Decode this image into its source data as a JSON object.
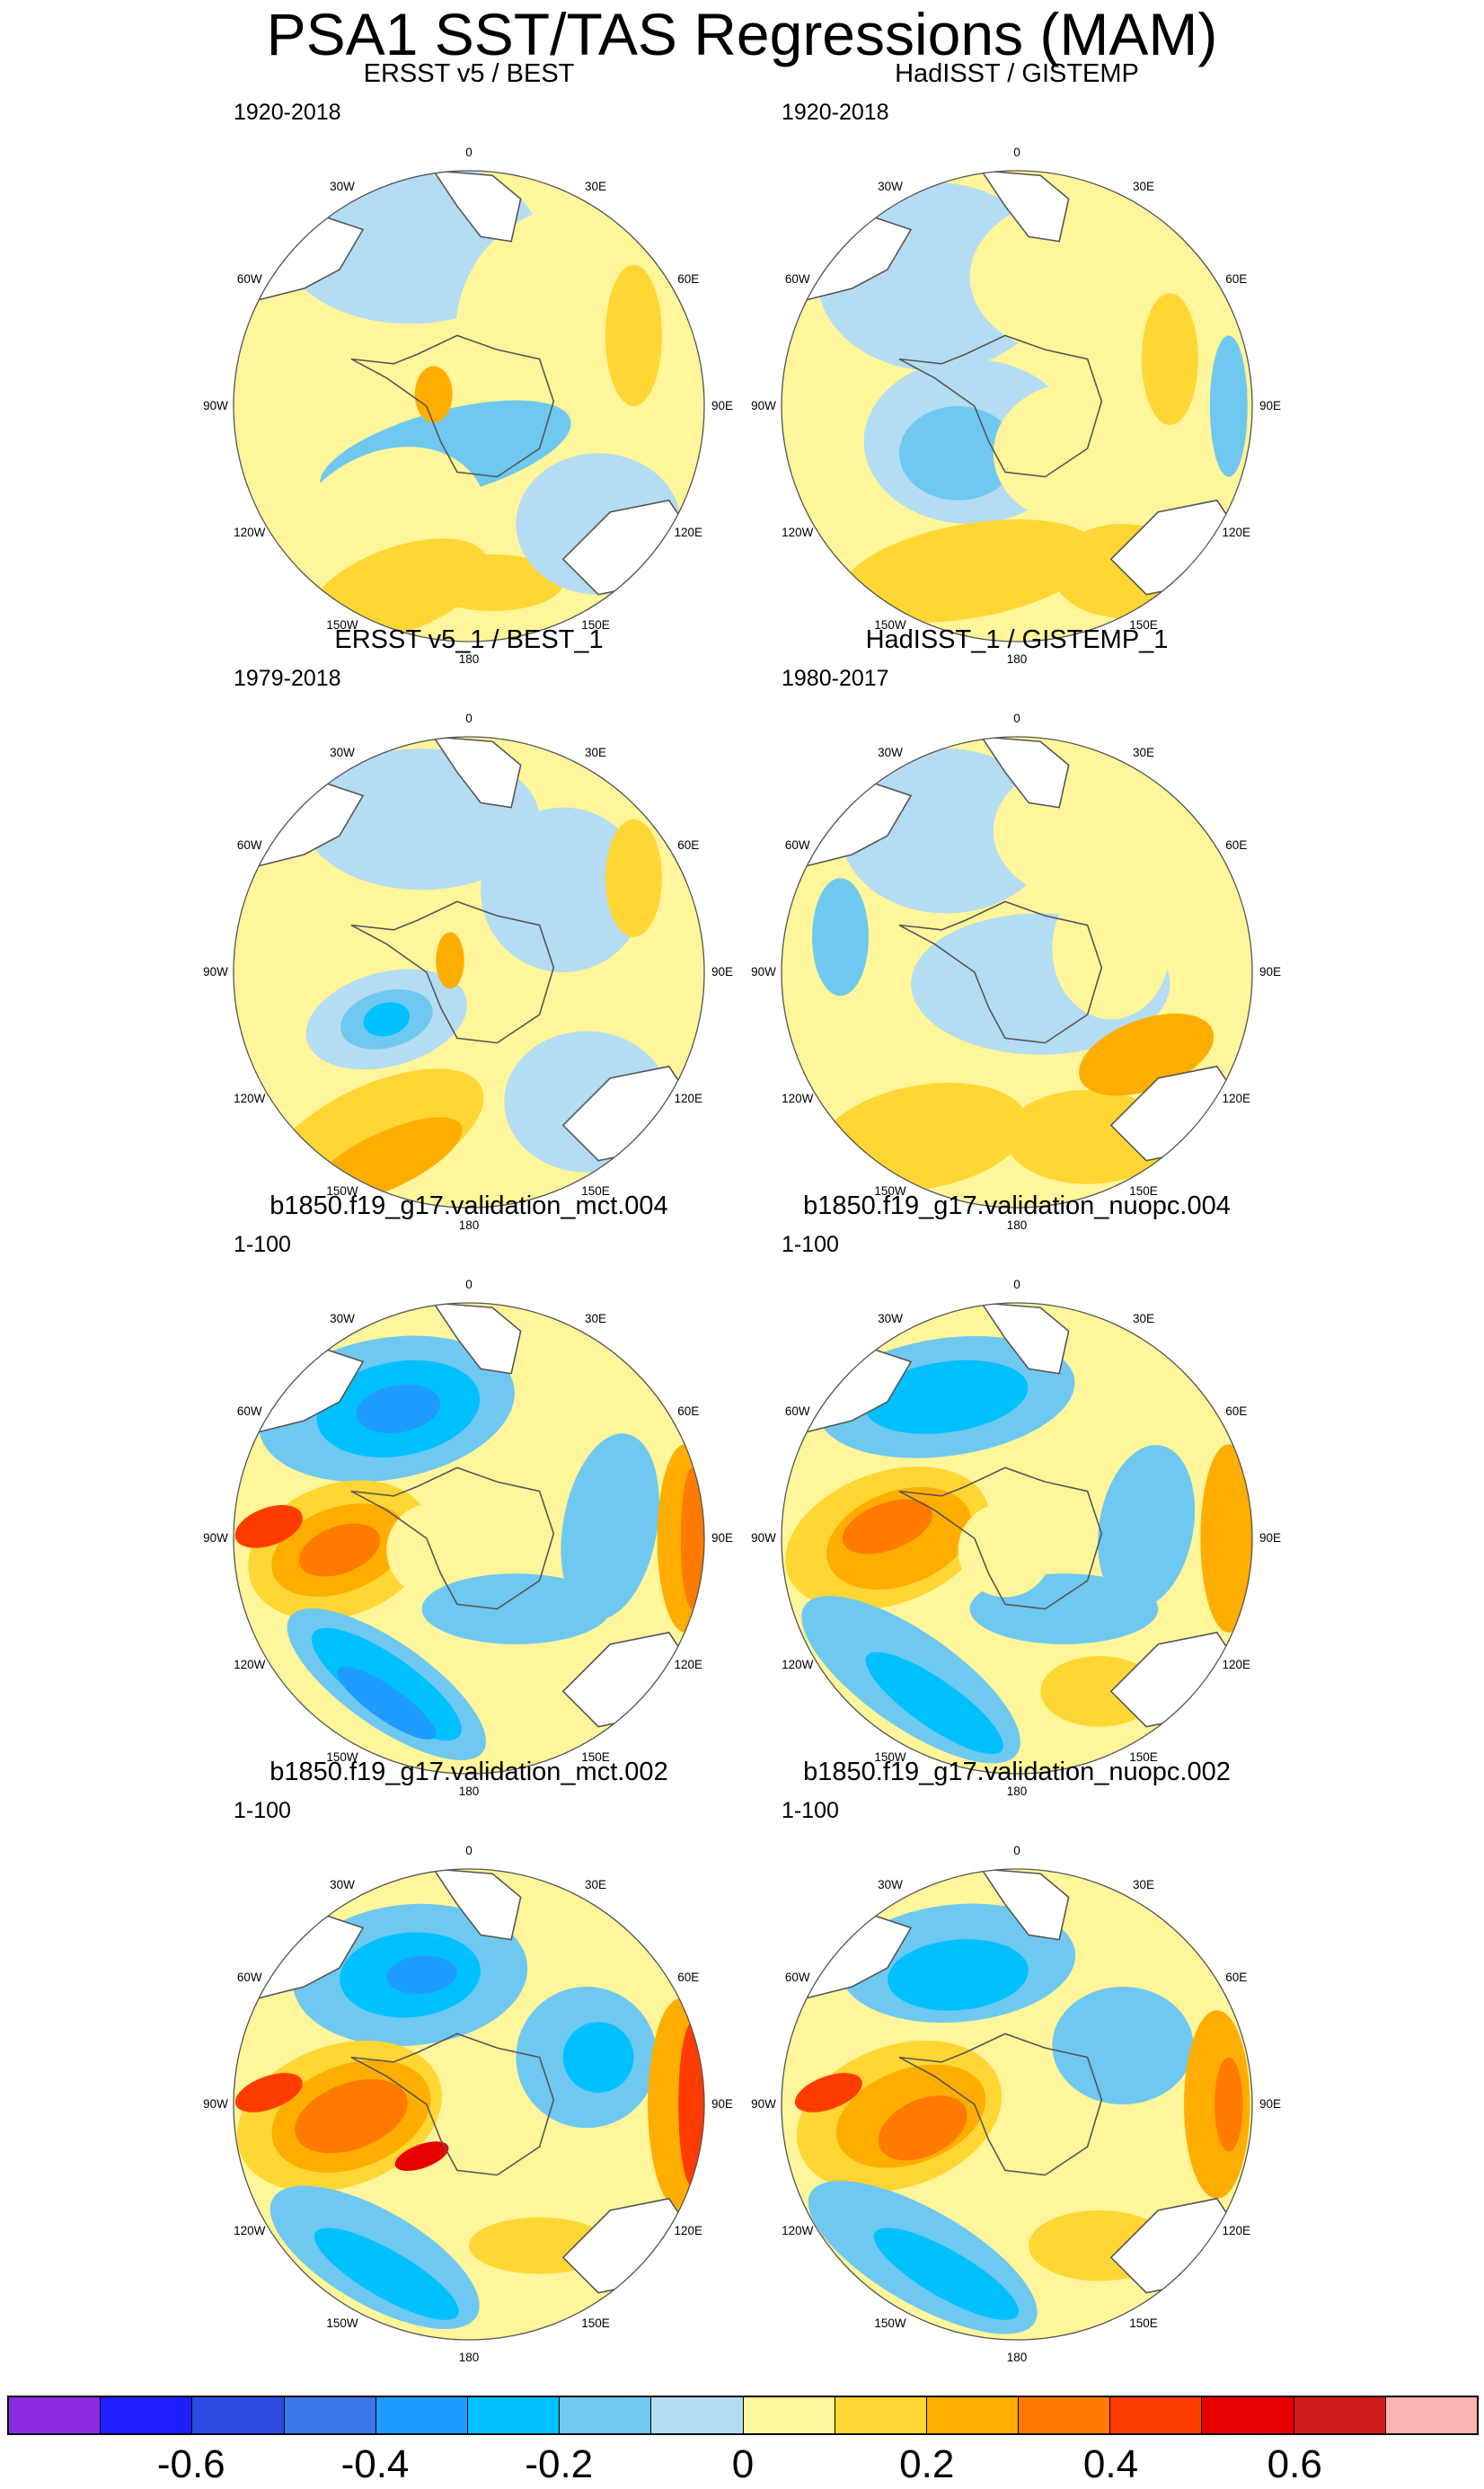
{
  "title": "PSA1 SST/TAS Regressions (MAM)",
  "panels": [
    {
      "title": "ERSST v5 / BEST",
      "period": "1920-2018",
      "pattern": "obs_a"
    },
    {
      "title": "HadISST / GISTEMP",
      "period": "1920-2018",
      "pattern": "obs_b"
    },
    {
      "title": "ERSST v5_1 / BEST_1",
      "period": "1979-2018",
      "pattern": "obs_c"
    },
    {
      "title": "HadISST_1 / GISTEMP_1",
      "period": "1980-2017",
      "pattern": "obs_d"
    },
    {
      "title": "b1850.f19_g17.validation_mct.004",
      "period": "1-100",
      "pattern": "mod_a"
    },
    {
      "title": "b1850.f19_g17.validation_nuopc.004",
      "period": "1-100",
      "pattern": "mod_b"
    },
    {
      "title": "b1850.f19_g17.validation_mct.002",
      "period": "1-100",
      "pattern": "mod_c"
    },
    {
      "title": "b1850.f19_g17.validation_nuopc.002",
      "period": "1-100",
      "pattern": "mod_d"
    }
  ],
  "longitude_labels": [
    "0",
    "30E",
    "60E",
    "90E",
    "120E",
    "150E",
    "180",
    "150W",
    "120W",
    "90W",
    "60W",
    "30W"
  ],
  "colorbar": {
    "colors": [
      "#8a2be2",
      "#1e1eff",
      "#2d4de0",
      "#3a78ea",
      "#1e9bff",
      "#00c0ff",
      "#6fc8f0",
      "#b4dcf2",
      "#fff59a",
      "#ffd633",
      "#ffad00",
      "#ff7a00",
      "#ff3c00",
      "#e80000",
      "#d01c1c",
      "#ffb4b4"
    ],
    "labels": [
      "-0.6",
      "-0.4",
      "-0.2",
      "0",
      "0.2",
      "0.4",
      "0.6"
    ],
    "label_bins": [
      1,
      3,
      5,
      7,
      9,
      11,
      13
    ]
  }
}
